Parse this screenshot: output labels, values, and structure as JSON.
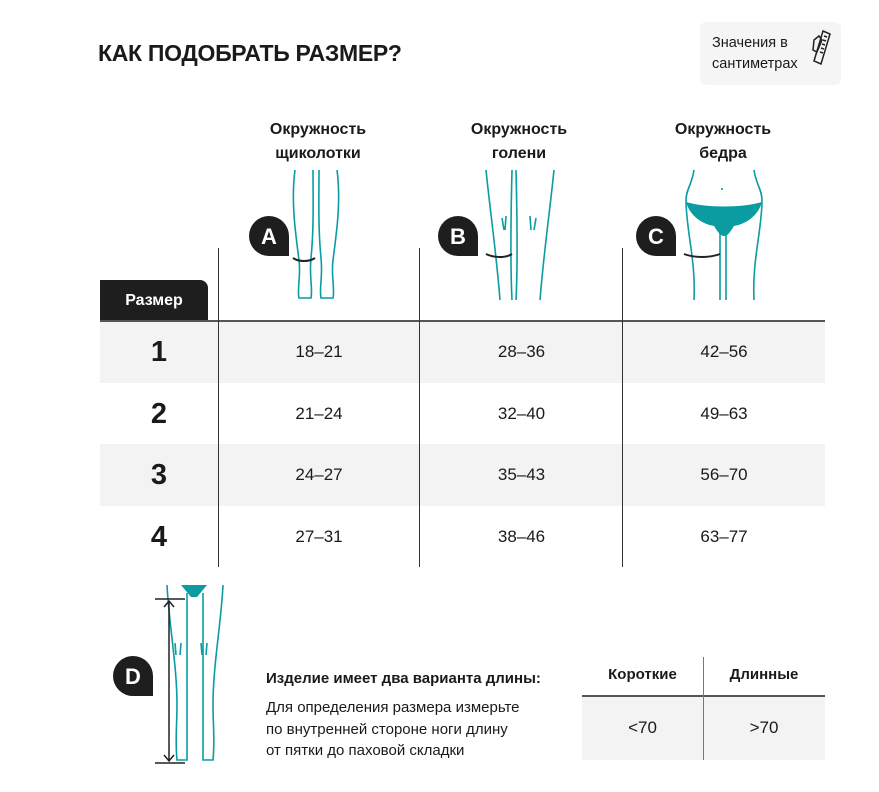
{
  "title": "КАК ПОДОБРАТЬ РАЗМЕР?",
  "units_badge": {
    "line1": "Значения в",
    "line2": "сантиметрах",
    "icon": "ruler-pencil-icon"
  },
  "columns": [
    {
      "letter": "A",
      "line1": "Окружность",
      "line2": "щиколотки"
    },
    {
      "letter": "B",
      "line1": "Окружность",
      "line2": "голени"
    },
    {
      "letter": "C",
      "line1": "Окружность",
      "line2": "бедра"
    }
  ],
  "size_label": "Размер",
  "rows": [
    {
      "size": "1",
      "values": [
        "18–21",
        "28–36",
        "42–56"
      ]
    },
    {
      "size": "2",
      "values": [
        "21–24",
        "32–40",
        "49–63"
      ]
    },
    {
      "size": "3",
      "values": [
        "24–27",
        "35–43",
        "56–70"
      ]
    },
    {
      "size": "4",
      "values": [
        "27–31",
        "38–46",
        "63–77"
      ]
    }
  ],
  "length": {
    "letter": "D",
    "heading": "Изделие имеет два варианта длины:",
    "desc": [
      "Для определения размера измерьте",
      "по внутренней стороне ноги длину",
      "от пятки до паховой складки"
    ],
    "table": {
      "headers": [
        "Короткие",
        "Длинные"
      ],
      "values": [
        "<70",
        ">70"
      ]
    }
  },
  "colors": {
    "accent": "#0a9ca1",
    "dark": "#1e1e1e",
    "band": "#f3f3f3"
  }
}
